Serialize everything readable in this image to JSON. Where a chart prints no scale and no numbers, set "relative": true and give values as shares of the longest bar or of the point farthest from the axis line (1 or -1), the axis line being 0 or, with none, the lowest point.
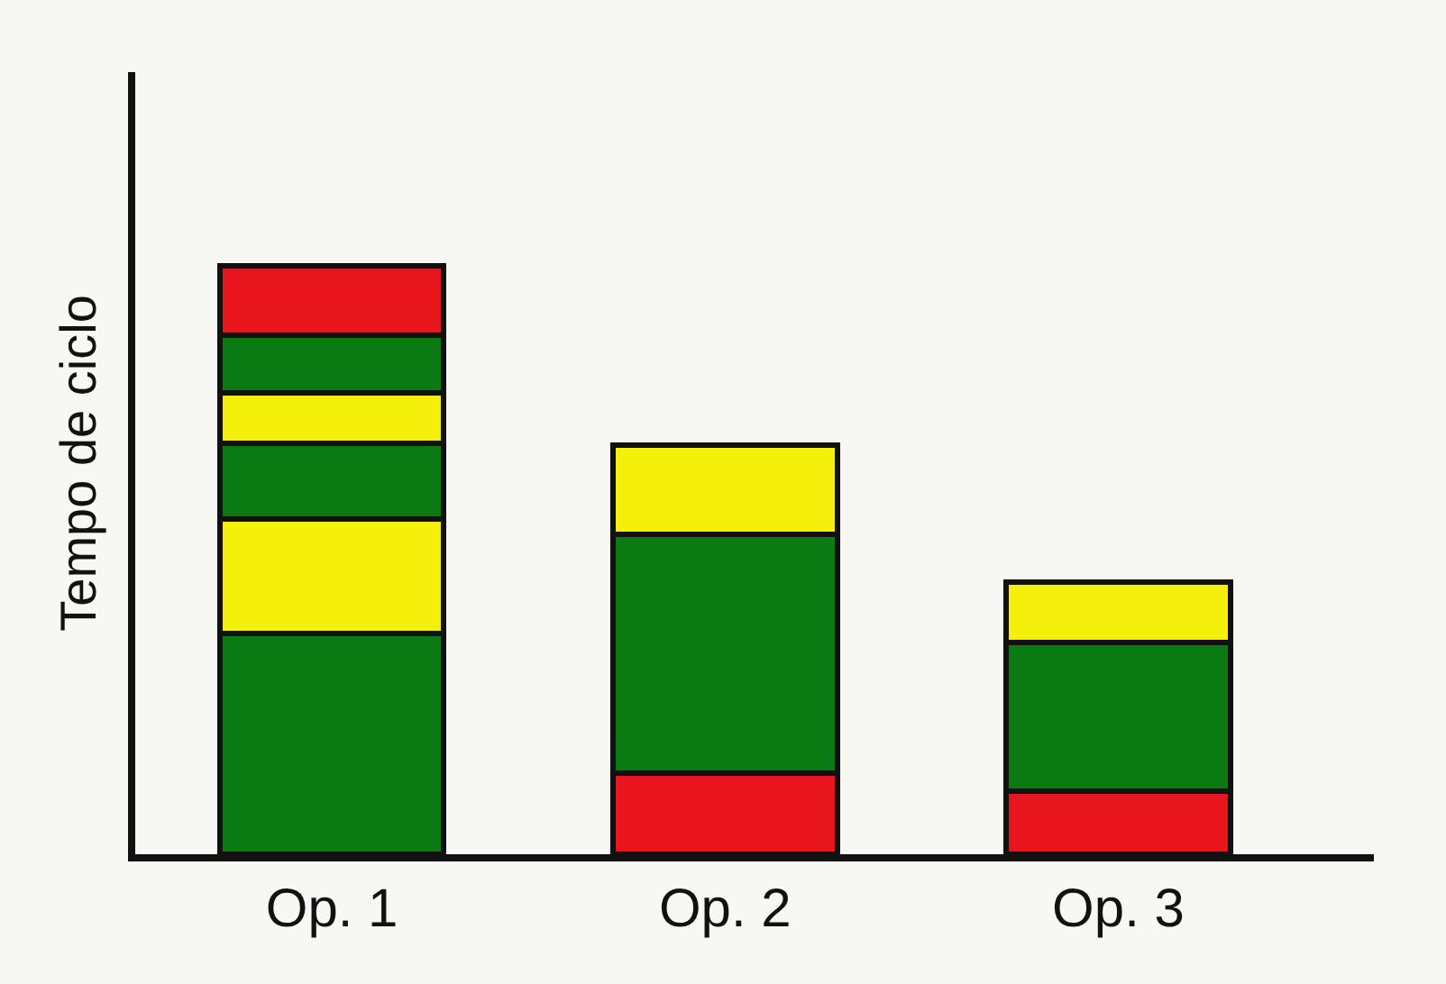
{
  "chart_data": {
    "type": "bar",
    "stacked": true,
    "relative": true,
    "ylabel": "Tempo de ciclo",
    "categories": [
      "Op. 1",
      "Op. 2",
      "Op. 3"
    ],
    "grid": false,
    "series": [
      {
        "colors": [
          "#0a7a12",
          "#e8161c",
          "#e8161c"
        ],
        "values": [
          0.376,
          0.138,
          0.108
        ]
      },
      {
        "colors": [
          "#f4f00c",
          "#0a7a12",
          "#0a7a12"
        ],
        "values": [
          0.194,
          0.406,
          0.252
        ]
      },
      {
        "colors": [
          "#0a7a12",
          "#f4f00c",
          "#f4f00c"
        ],
        "values": [
          0.129,
          0.151,
          0.102
        ]
      },
      {
        "colors": [
          "#f4f00c",
          null,
          null
        ],
        "values": [
          0.086,
          null,
          null
        ]
      },
      {
        "colors": [
          "#0a7a12",
          null,
          null
        ],
        "values": [
          0.098,
          null,
          null
        ]
      },
      {
        "colors": [
          "#e8161c",
          null,
          null
        ],
        "values": [
          0.117,
          null,
          null
        ]
      }
    ]
  }
}
